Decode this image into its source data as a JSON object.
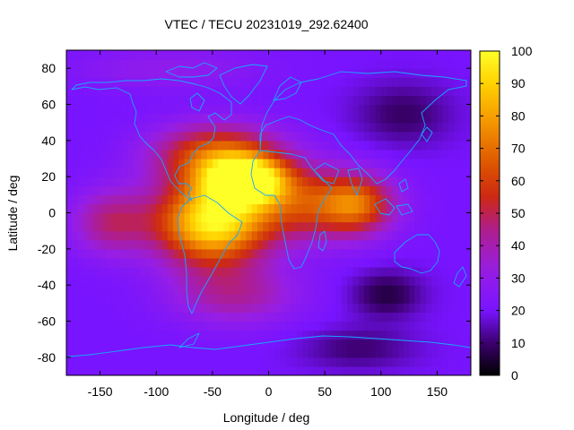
{
  "chart_data": {
    "type": "heatmap",
    "title": "VTEC / TECU 20231019_292.62400",
    "xlabel": "Longitude / deg",
    "ylabel": "Latitude / deg",
    "xlim": [
      -180,
      180
    ],
    "ylim": [
      -90,
      90
    ],
    "x_ticks": [
      -150,
      -100,
      -50,
      0,
      50,
      100,
      150
    ],
    "y_ticks": [
      -80,
      -60,
      -40,
      -20,
      0,
      20,
      40,
      60,
      80
    ],
    "colorbar": {
      "range": [
        0,
        100
      ],
      "ticks": [
        0,
        10,
        20,
        30,
        40,
        50,
        60,
        70,
        80,
        90,
        100
      ],
      "palette": "black-purple-red-orange-yellow"
    },
    "background_level": 20,
    "features": [
      {
        "name": "equatorial anomaly peak (Americas)",
        "lon": -50,
        "lat": -5,
        "value": 97,
        "lon_spread": 35,
        "lat_spread": 16
      },
      {
        "name": "northern crest",
        "lon": -20,
        "lat": 18,
        "value": 92,
        "lon_spread": 25,
        "lat_spread": 9
      },
      {
        "name": "north Atlantic tongue",
        "lon": -45,
        "lat": 32,
        "value": 66,
        "lon_spread": 40,
        "lat_spread": 12
      },
      {
        "name": "eastward extension",
        "lon": 40,
        "lat": 5,
        "value": 58,
        "lon_spread": 40,
        "lat_spread": 14
      },
      {
        "name": "Indian Ocean extension",
        "lon": 80,
        "lat": 5,
        "value": 52,
        "lon_spread": 22,
        "lat_spread": 11
      },
      {
        "name": "east Pacific extension",
        "lon": -140,
        "lat": -5,
        "value": 46,
        "lon_spread": 25,
        "lat_spread": 13
      },
      {
        "name": "south Atlantic",
        "lon": -30,
        "lat": -45,
        "value": 42,
        "lon_spread": 40,
        "lat_spread": 12
      },
      {
        "name": "Arctic enhancement",
        "lon": -90,
        "lat": 80,
        "value": 30,
        "lon_spread": 60,
        "lat_spread": 8
      },
      {
        "name": "north Asia minimum",
        "lon": 120,
        "lat": 55,
        "value": 9,
        "lon_spread": 30,
        "lat_spread": 12
      },
      {
        "name": "south Indian Ocean minimum",
        "lon": 105,
        "lat": -45,
        "value": 6,
        "lon_spread": 22,
        "lat_spread": 9
      },
      {
        "name": "Antarctic minimum",
        "lon": 80,
        "lat": -75,
        "value": 10,
        "lon_spread": 35,
        "lat_spread": 8
      }
    ]
  }
}
